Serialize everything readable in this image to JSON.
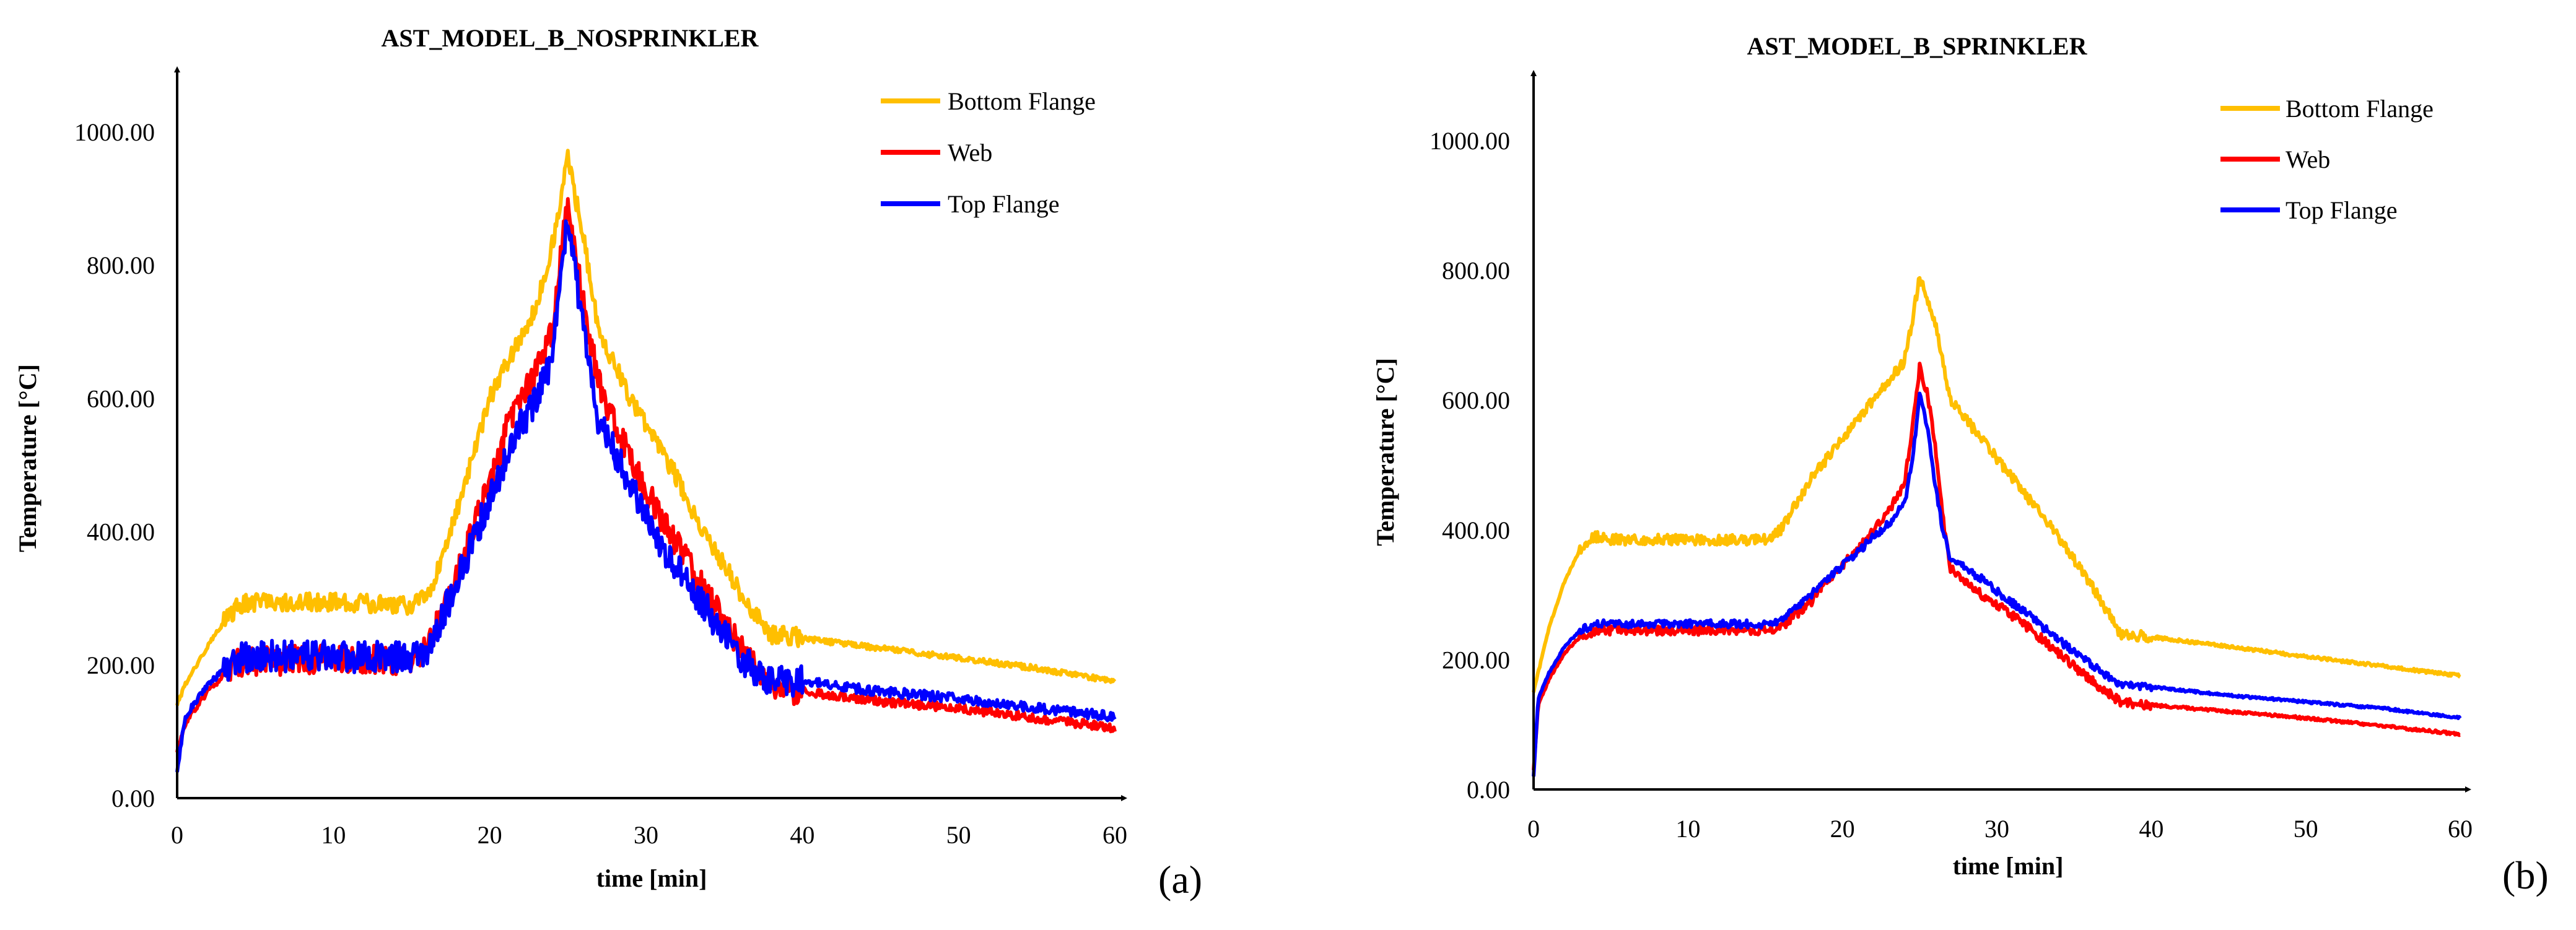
{
  "figure": {
    "panel_a_label": "(a)",
    "panel_b_label": "(b)"
  },
  "colors": {
    "bottom_flange": "#FFBF00",
    "web": "#FF0000",
    "top_flange": "#0000FF",
    "axis": "#000000"
  },
  "chart_data": [
    {
      "type": "line",
      "title": "AST_MODEL_B_NOSPRINKLER",
      "xlabel": "time  [min]",
      "ylabel": "Temperature  [°C]",
      "xlim": [
        0,
        60
      ],
      "ylim": [
        0,
        1000
      ],
      "xticks": [
        0,
        10,
        20,
        30,
        40,
        50,
        60
      ],
      "xtick_labels": [
        "0",
        "10",
        "20",
        "30",
        "40",
        "50",
        "60"
      ],
      "yticks": [
        0,
        200,
        400,
        600,
        800,
        1000
      ],
      "ytick_labels": [
        "0.00",
        "200.00",
        "400.00",
        "600.00",
        "800.00",
        "1000.00"
      ],
      "grid": false,
      "legend_position": "top-right",
      "series": [
        {
          "name": "Bottom Flange",
          "color": "#FFBF00",
          "x": [
            0,
            0.5,
            1,
            2,
            3,
            4,
            5,
            8,
            12,
            15,
            16,
            17,
            18,
            19,
            20,
            21,
            22,
            23,
            24,
            25,
            26,
            27,
            28,
            29,
            30,
            31,
            32,
            33,
            34,
            35,
            36,
            37,
            38,
            39,
            40,
            45,
            50,
            55,
            60
          ],
          "y": [
            140,
            170,
            190,
            230,
            265,
            290,
            295,
            295,
            292,
            290,
            305,
            360,
            440,
            520,
            600,
            650,
            690,
            740,
            830,
            960,
            840,
            700,
            650,
            600,
            560,
            520,
            480,
            430,
            390,
            350,
            310,
            275,
            245,
            245,
            240,
            225,
            210,
            195,
            175
          ],
          "noise": 14
        },
        {
          "name": "Web",
          "color": "#FF0000",
          "x": [
            0,
            0.5,
            1,
            2,
            3,
            4,
            5,
            8,
            12,
            15,
            16,
            17,
            18,
            19,
            20,
            21,
            22,
            23,
            24,
            25,
            26,
            27,
            28,
            29,
            30,
            31,
            32,
            33,
            34,
            35,
            36,
            37,
            38,
            39,
            40,
            45,
            50,
            55,
            60
          ],
          "y": [
            70,
            110,
            130,
            160,
            185,
            205,
            205,
            208,
            207,
            207,
            225,
            280,
            340,
            410,
            470,
            550,
            600,
            640,
            700,
            900,
            740,
            620,
            560,
            510,
            460,
            420,
            380,
            340,
            300,
            265,
            230,
            195,
            170,
            165,
            160,
            145,
            135,
            120,
            105
          ],
          "noise": 22
        },
        {
          "name": "Top Flange",
          "color": "#0000FF",
          "x": [
            0,
            0.5,
            1,
            2,
            3,
            4,
            5,
            8,
            12,
            15,
            16,
            17,
            18,
            19,
            20,
            21,
            22,
            23,
            24,
            25,
            26,
            27,
            28,
            29,
            30,
            31,
            32,
            33,
            34,
            35,
            36,
            37,
            38,
            39,
            40,
            45,
            50,
            55,
            60
          ],
          "y": [
            40,
            120,
            140,
            170,
            195,
            210,
            212,
            213,
            212,
            212,
            225,
            275,
            330,
            390,
            450,
            510,
            560,
            600,
            660,
            880,
            700,
            560,
            520,
            470,
            420,
            380,
            345,
            310,
            280,
            245,
            215,
            190,
            175,
            175,
            175,
            160,
            150,
            135,
            122
          ],
          "noise": 24
        }
      ]
    },
    {
      "type": "line",
      "title": "AST_MODEL_B_SPRINKLER",
      "xlabel": "time  [min]",
      "ylabel": "Temperature  [°C]",
      "xlim": [
        0,
        60
      ],
      "ylim": [
        0,
        1000
      ],
      "xticks": [
        0,
        10,
        20,
        30,
        40,
        50,
        60
      ],
      "xtick_labels": [
        "0",
        "10",
        "20",
        "30",
        "40",
        "50",
        "60"
      ],
      "yticks": [
        0,
        200,
        400,
        600,
        800,
        1000
      ],
      "ytick_labels": [
        "0.00",
        "200.00",
        "400.00",
        "600.00",
        "800.00",
        "1000.00"
      ],
      "grid": false,
      "legend_position": "top-right",
      "series": [
        {
          "name": "Bottom Flange",
          "color": "#FFBF00",
          "x": [
            0,
            0.3,
            1,
            2,
            3,
            4,
            5,
            8,
            12,
            15,
            16,
            17,
            18,
            19,
            20,
            21,
            22,
            23,
            24,
            24.5,
            25,
            26,
            27,
            28,
            29,
            30,
            32,
            34,
            36,
            38,
            40,
            45,
            50,
            55,
            60
          ],
          "y": [
            150,
            180,
            250,
            320,
            370,
            390,
            385,
            385,
            385,
            385,
            400,
            440,
            480,
            510,
            540,
            570,
            600,
            630,
            660,
            720,
            790,
            720,
            600,
            570,
            540,
            510,
            450,
            390,
            320,
            240,
            235,
            220,
            205,
            190,
            175
          ],
          "noise": 8
        },
        {
          "name": "Web",
          "color": "#FF0000",
          "x": [
            0,
            0.3,
            1,
            2,
            3,
            4,
            5,
            8,
            12,
            15,
            16,
            17,
            18,
            19,
            20,
            21,
            22,
            23,
            24,
            24.5,
            25,
            25.5,
            26,
            26.5,
            27,
            28,
            29,
            30,
            32,
            34,
            36,
            38,
            40,
            45,
            50,
            55,
            60
          ],
          "y": [
            30,
            130,
            170,
            210,
            235,
            245,
            245,
            245,
            245,
            245,
            250,
            270,
            290,
            320,
            345,
            370,
            400,
            430,
            470,
            550,
            650,
            610,
            530,
            420,
            340,
            320,
            300,
            285,
            250,
            210,
            170,
            135,
            130,
            120,
            110,
            98,
            85
          ],
          "noise": 7
        },
        {
          "name": "Top Flange",
          "color": "#0000FF",
          "x": [
            0,
            0.3,
            1,
            2,
            3,
            4,
            5,
            8,
            12,
            15,
            16,
            17,
            18,
            19,
            20,
            21,
            22,
            23,
            24,
            24.5,
            25,
            25.5,
            26,
            26.5,
            27,
            28,
            29,
            30,
            32,
            34,
            36,
            38,
            40,
            45,
            50,
            55,
            60
          ],
          "y": [
            20,
            140,
            180,
            220,
            245,
            255,
            255,
            255,
            255,
            255,
            262,
            280,
            300,
            325,
            345,
            365,
            390,
            410,
            440,
            500,
            610,
            560,
            470,
            400,
            355,
            340,
            325,
            305,
            270,
            230,
            195,
            160,
            158,
            145,
            135,
            125,
            110
          ],
          "noise": 6
        }
      ]
    }
  ]
}
